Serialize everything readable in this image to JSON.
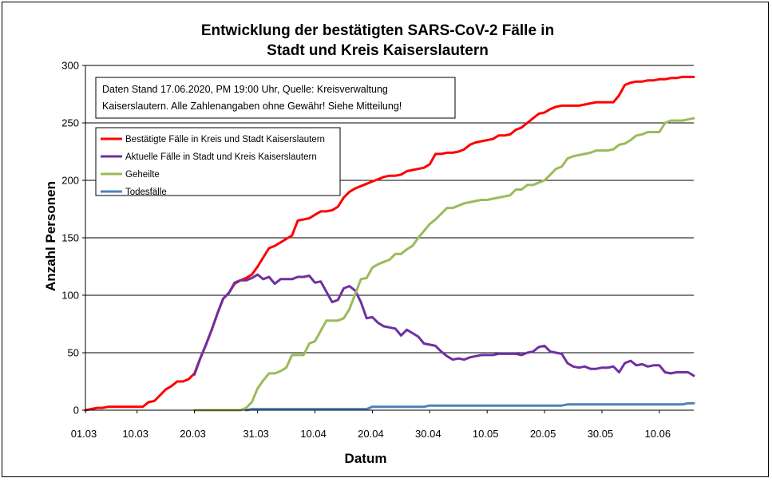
{
  "chart_data": {
    "type": "line",
    "title": [
      "Entwicklung der bestätigten SARS-CoV-2 Fälle in",
      "Stadt und Kreis Kaiserslautern"
    ],
    "xlabel": "Datum",
    "ylabel": "Anzahl Personen",
    "ylim": [
      0,
      300
    ],
    "yticks": [
      0,
      50,
      100,
      150,
      200,
      250,
      300
    ],
    "xticks": [
      "01.03",
      "10.03",
      "20.03",
      "31.03",
      "10.04",
      "20.04",
      "30.04",
      "10.05",
      "20.05",
      "30.05",
      "10.06"
    ],
    "xtick_days": [
      0,
      9,
      19,
      30,
      40,
      50,
      60,
      70,
      80,
      90,
      100
    ],
    "grid": true,
    "note": [
      "Daten Stand 17.06.2020, PM 19:00 Uhr, Quelle: Kreisverwaltung",
      "Kaiserslautern. Alle Zahlenangaben ohne Gewähr! Siehe Mitteilung!"
    ],
    "legend_position": "top-left",
    "series": [
      {
        "name": "Bestätigte Fälle in Kreis und Stadt Kaiserslautern",
        "color": "#ff0000",
        "points": [
          [
            0,
            0
          ],
          [
            1,
            1
          ],
          [
            2,
            2
          ],
          [
            3,
            2
          ],
          [
            4,
            3
          ],
          [
            6,
            3
          ],
          [
            8,
            3
          ],
          [
            9,
            3
          ],
          [
            10,
            3
          ],
          [
            11,
            7
          ],
          [
            12,
            8
          ],
          [
            13,
            13
          ],
          [
            14,
            18
          ],
          [
            15,
            21
          ],
          [
            16,
            25
          ],
          [
            17,
            25
          ],
          [
            18,
            27
          ],
          [
            19,
            32
          ],
          [
            20,
            45
          ],
          [
            21,
            57
          ],
          [
            22,
            70
          ],
          [
            23,
            84
          ],
          [
            24,
            97
          ],
          [
            25,
            102
          ],
          [
            26,
            110
          ],
          [
            27,
            113
          ],
          [
            28,
            115
          ],
          [
            29,
            118
          ],
          [
            30,
            125
          ],
          [
            31,
            133
          ],
          [
            32,
            141
          ],
          [
            33,
            143
          ],
          [
            34,
            146
          ],
          [
            35,
            149
          ],
          [
            36,
            152
          ],
          [
            37,
            165
          ],
          [
            38,
            166
          ],
          [
            39,
            167
          ],
          [
            40,
            170
          ],
          [
            41,
            173
          ],
          [
            42,
            173
          ],
          [
            43,
            174
          ],
          [
            44,
            177
          ],
          [
            45,
            185
          ],
          [
            46,
            190
          ],
          [
            47,
            193
          ],
          [
            48,
            195
          ],
          [
            49,
            197
          ],
          [
            50,
            199
          ],
          [
            51,
            201
          ],
          [
            52,
            203
          ],
          [
            53,
            204
          ],
          [
            54,
            204
          ],
          [
            55,
            205
          ],
          [
            56,
            208
          ],
          [
            57,
            209
          ],
          [
            58,
            210
          ],
          [
            59,
            211
          ],
          [
            60,
            214
          ],
          [
            61,
            223
          ],
          [
            62,
            223
          ],
          [
            63,
            224
          ],
          [
            64,
            224
          ],
          [
            65,
            225
          ],
          [
            66,
            227
          ],
          [
            67,
            231
          ],
          [
            68,
            233
          ],
          [
            69,
            234
          ],
          [
            70,
            235
          ],
          [
            71,
            236
          ],
          [
            72,
            239
          ],
          [
            73,
            239
          ],
          [
            74,
            240
          ],
          [
            75,
            244
          ],
          [
            76,
            246
          ],
          [
            77,
            250
          ],
          [
            78,
            254
          ],
          [
            79,
            258
          ],
          [
            80,
            259
          ],
          [
            81,
            262
          ],
          [
            82,
            264
          ],
          [
            83,
            265
          ],
          [
            84,
            265
          ],
          [
            85,
            265
          ],
          [
            86,
            265
          ],
          [
            87,
            266
          ],
          [
            88,
            267
          ],
          [
            89,
            268
          ],
          [
            90,
            268
          ],
          [
            91,
            268
          ],
          [
            92,
            268
          ],
          [
            93,
            274
          ],
          [
            94,
            283
          ],
          [
            95,
            285
          ],
          [
            96,
            286
          ],
          [
            97,
            286
          ],
          [
            98,
            287
          ],
          [
            99,
            287
          ],
          [
            100,
            288
          ],
          [
            101,
            288
          ],
          [
            102,
            289
          ],
          [
            103,
            289
          ],
          [
            104,
            290
          ],
          [
            105,
            290
          ],
          [
            106,
            290
          ]
        ]
      },
      {
        "name": "Aktuelle Fälle in Stadt und Kreis Kaiserslautern",
        "color": "#7030a0",
        "points": [
          [
            19,
            31
          ],
          [
            20,
            45
          ],
          [
            21,
            57
          ],
          [
            22,
            70
          ],
          [
            23,
            84
          ],
          [
            24,
            97
          ],
          [
            25,
            102
          ],
          [
            26,
            111
          ],
          [
            27,
            113
          ],
          [
            28,
            113
          ],
          [
            29,
            115
          ],
          [
            30,
            118
          ],
          [
            31,
            114
          ],
          [
            32,
            116
          ],
          [
            33,
            110
          ],
          [
            34,
            114
          ],
          [
            35,
            114
          ],
          [
            36,
            114
          ],
          [
            37,
            116
          ],
          [
            38,
            116
          ],
          [
            39,
            117
          ],
          [
            40,
            111
          ],
          [
            41,
            112
          ],
          [
            42,
            103
          ],
          [
            43,
            94
          ],
          [
            44,
            96
          ],
          [
            45,
            106
          ],
          [
            46,
            108
          ],
          [
            47,
            104
          ],
          [
            48,
            94
          ],
          [
            49,
            80
          ],
          [
            50,
            81
          ],
          [
            51,
            76
          ],
          [
            52,
            73
          ],
          [
            53,
            72
          ],
          [
            54,
            71
          ],
          [
            55,
            65
          ],
          [
            56,
            70
          ],
          [
            57,
            67
          ],
          [
            58,
            64
          ],
          [
            59,
            58
          ],
          [
            60,
            57
          ],
          [
            61,
            56
          ],
          [
            62,
            51
          ],
          [
            63,
            47
          ],
          [
            64,
            44
          ],
          [
            65,
            45
          ],
          [
            66,
            44
          ],
          [
            67,
            46
          ],
          [
            68,
            47
          ],
          [
            69,
            48
          ],
          [
            70,
            48
          ],
          [
            71,
            48
          ],
          [
            72,
            49
          ],
          [
            73,
            49
          ],
          [
            74,
            49
          ],
          [
            75,
            49
          ],
          [
            76,
            48
          ],
          [
            77,
            50
          ],
          [
            78,
            51
          ],
          [
            79,
            55
          ],
          [
            80,
            56
          ],
          [
            81,
            51
          ],
          [
            82,
            50
          ],
          [
            83,
            49
          ],
          [
            84,
            41
          ],
          [
            85,
            38
          ],
          [
            86,
            37
          ],
          [
            87,
            38
          ],
          [
            88,
            36
          ],
          [
            89,
            36
          ],
          [
            90,
            37
          ],
          [
            91,
            37
          ],
          [
            92,
            38
          ],
          [
            93,
            33
          ],
          [
            94,
            41
          ],
          [
            95,
            43
          ],
          [
            96,
            39
          ],
          [
            97,
            40
          ],
          [
            98,
            38
          ],
          [
            99,
            39
          ],
          [
            100,
            39
          ],
          [
            101,
            33
          ],
          [
            102,
            32
          ],
          [
            103,
            33
          ],
          [
            104,
            33
          ],
          [
            105,
            33
          ],
          [
            106,
            30
          ]
        ]
      },
      {
        "name": "Geheilte",
        "color": "#9bbb59",
        "points": [
          [
            19,
            0
          ],
          [
            27,
            0
          ],
          [
            28,
            2
          ],
          [
            29,
            7
          ],
          [
            30,
            19
          ],
          [
            31,
            26
          ],
          [
            32,
            32
          ],
          [
            33,
            32
          ],
          [
            34,
            34
          ],
          [
            35,
            37
          ],
          [
            36,
            48
          ],
          [
            37,
            48
          ],
          [
            38,
            48
          ],
          [
            39,
            58
          ],
          [
            40,
            60
          ],
          [
            41,
            69
          ],
          [
            42,
            78
          ],
          [
            43,
            78
          ],
          [
            44,
            78
          ],
          [
            45,
            80
          ],
          [
            46,
            88
          ],
          [
            47,
            101
          ],
          [
            48,
            114
          ],
          [
            49,
            115
          ],
          [
            50,
            124
          ],
          [
            51,
            127
          ],
          [
            52,
            129
          ],
          [
            53,
            131
          ],
          [
            54,
            136
          ],
          [
            55,
            136
          ],
          [
            56,
            140
          ],
          [
            57,
            143
          ],
          [
            58,
            150
          ],
          [
            59,
            156
          ],
          [
            60,
            162
          ],
          [
            61,
            166
          ],
          [
            62,
            171
          ],
          [
            63,
            176
          ],
          [
            64,
            176
          ],
          [
            65,
            178
          ],
          [
            66,
            180
          ],
          [
            67,
            181
          ],
          [
            68,
            182
          ],
          [
            69,
            183
          ],
          [
            70,
            183
          ],
          [
            71,
            184
          ],
          [
            72,
            185
          ],
          [
            73,
            186
          ],
          [
            74,
            187
          ],
          [
            75,
            192
          ],
          [
            76,
            192
          ],
          [
            77,
            196
          ],
          [
            78,
            196
          ],
          [
            79,
            198
          ],
          [
            80,
            200
          ],
          [
            81,
            205
          ],
          [
            82,
            210
          ],
          [
            83,
            212
          ],
          [
            84,
            219
          ],
          [
            85,
            221
          ],
          [
            86,
            222
          ],
          [
            87,
            223
          ],
          [
            88,
            224
          ],
          [
            89,
            226
          ],
          [
            90,
            226
          ],
          [
            91,
            226
          ],
          [
            92,
            227
          ],
          [
            93,
            231
          ],
          [
            94,
            232
          ],
          [
            95,
            235
          ],
          [
            96,
            239
          ],
          [
            97,
            240
          ],
          [
            98,
            242
          ],
          [
            99,
            242
          ],
          [
            100,
            242
          ],
          [
            101,
            250
          ],
          [
            102,
            252
          ],
          [
            103,
            252
          ],
          [
            104,
            252
          ],
          [
            105,
            253
          ],
          [
            106,
            254
          ]
        ]
      },
      {
        "name": "Todesfälle",
        "color": "#4f81bd",
        "points": [
          [
            28,
            0
          ],
          [
            29,
            1
          ],
          [
            30,
            1
          ],
          [
            49,
            1
          ],
          [
            50,
            3
          ],
          [
            51,
            3
          ],
          [
            59,
            3
          ],
          [
            60,
            4
          ],
          [
            61,
            4
          ],
          [
            83,
            4
          ],
          [
            84,
            5
          ],
          [
            85,
            5
          ],
          [
            104,
            5
          ],
          [
            105,
            6
          ],
          [
            106,
            6
          ]
        ]
      }
    ]
  }
}
